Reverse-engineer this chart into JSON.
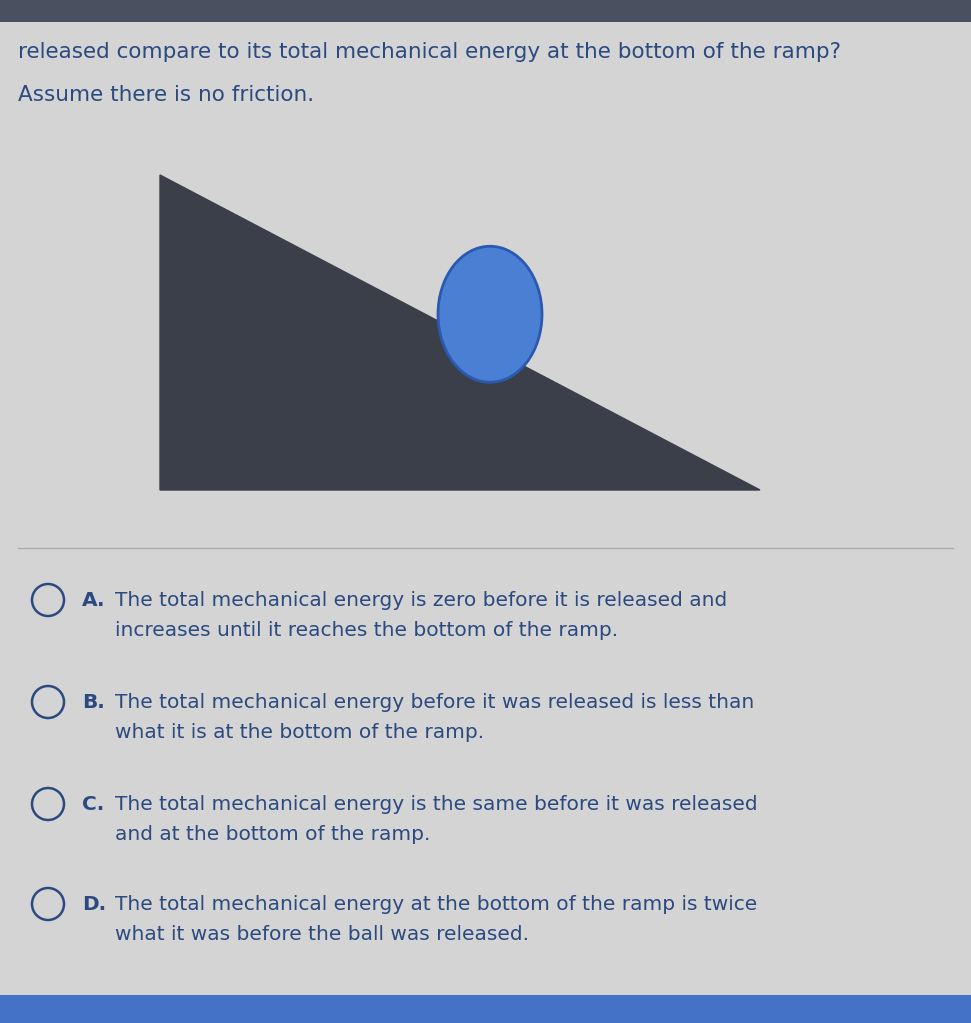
{
  "bg_color": "#d4d4d4",
  "header_text_line1": "released compare to its total mechanical energy at the bottom of the ramp?",
  "header_text_line2": "Assume there is no friction.",
  "header_font_size": 15.5,
  "triangle_color": "#3a3f4a",
  "ball_color": "#4a7fd4",
  "ball_edge_color": "#2a5ab0",
  "divider_color": "#aaaaaa",
  "options": [
    {
      "label": "A.",
      "text_line1": "The total mechanical energy is zero before it is released and",
      "text_line2": "increases until it reaches the bottom of the ramp."
    },
    {
      "label": "B.",
      "text_line1": "The total mechanical energy before it was released is less than",
      "text_line2": "what it is at the bottom of the ramp."
    },
    {
      "label": "C.",
      "text_line1": "The total mechanical energy is the same before it was released",
      "text_line2": "and at the bottom of the ramp."
    },
    {
      "label": "D.",
      "text_line1": "The total mechanical energy at the bottom of the ramp is twice",
      "text_line2": "what it was before the ball was released."
    }
  ],
  "option_font_size": 14.5,
  "text_color": "#2a4a80",
  "bottom_bar_color": "#4472c4"
}
